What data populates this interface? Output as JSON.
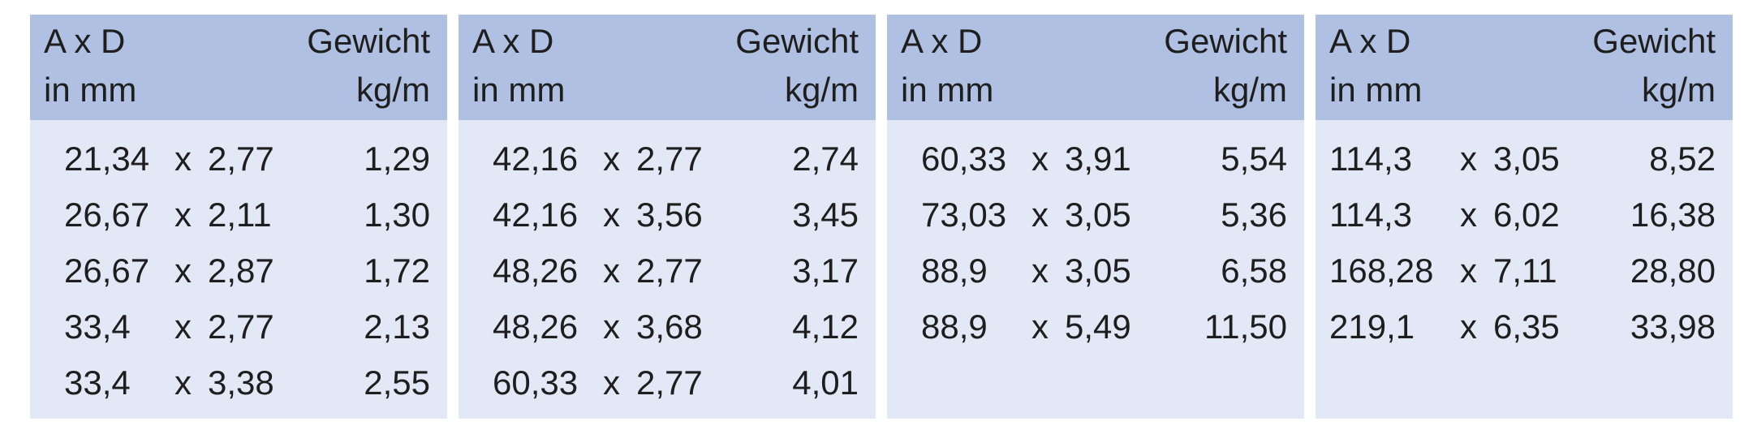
{
  "panels": [
    {
      "header": {
        "left": [
          "A x D",
          "in mm"
        ],
        "right": [
          "Gewicht",
          "kg/m"
        ]
      },
      "rows": [
        [
          "21,34",
          "x",
          "2,77",
          "1,29"
        ],
        [
          "26,67",
          "x",
          "2,11",
          "1,30"
        ],
        [
          "26,67",
          "x",
          "2,87",
          "1,72"
        ],
        [
          "33,4",
          "x",
          "2,77",
          "2,13"
        ],
        [
          "33,4",
          "x",
          "3,38",
          "2,55"
        ]
      ]
    },
    {
      "header": {
        "left": [
          "A x D",
          "in mm"
        ],
        "right": [
          "Gewicht",
          "kg/m"
        ]
      },
      "rows": [
        [
          "42,16",
          "x",
          "2,77",
          "2,74"
        ],
        [
          "42,16",
          "x",
          "3,56",
          "3,45"
        ],
        [
          "48,26",
          "x",
          "2,77",
          "3,17"
        ],
        [
          "48,26",
          "x",
          "3,68",
          "4,12"
        ],
        [
          "60,33",
          "x",
          "2,77",
          "4,01"
        ]
      ]
    },
    {
      "header": {
        "left": [
          "A x D",
          "in mm"
        ],
        "right": [
          "Gewicht",
          "kg/m"
        ]
      },
      "rows": [
        [
          "60,33",
          "x",
          "3,91",
          "5,54"
        ],
        [
          "73,03",
          "x",
          "3,05",
          "5,36"
        ],
        [
          "88,9",
          "x",
          "3,05",
          "6,58"
        ],
        [
          "88,9",
          "x",
          "5,49",
          "11,50"
        ]
      ]
    },
    {
      "header": {
        "left": [
          "A x D",
          "in mm"
        ],
        "right": [
          "Gewicht",
          "kg/m"
        ]
      },
      "rows": [
        [
          "114,3",
          "x",
          "3,05",
          "8,52"
        ],
        [
          "114,3",
          "x",
          "6,02",
          "16,38"
        ],
        [
          "168,28",
          "x",
          "7,11",
          "28,80"
        ],
        [
          "219,1",
          "x",
          "6,35",
          "33,98"
        ]
      ]
    }
  ]
}
